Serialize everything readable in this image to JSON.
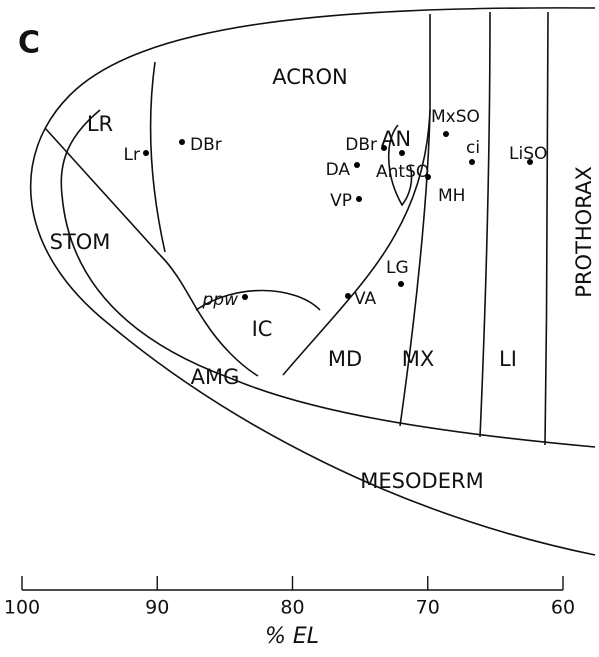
{
  "panel": "C",
  "regions": [
    "LR",
    "ACRON",
    "STOM",
    "AMG",
    "IC",
    "MD",
    "MX",
    "LI",
    "MESODERM",
    "PROTHORAX",
    "AN"
  ],
  "points": [
    "Lr",
    "DBr",
    "DBr",
    "DA",
    "AntSO",
    "VP",
    "MxSO",
    "ci",
    "LiSO",
    "MH",
    "LG",
    "VA",
    "ppw"
  ],
  "axis": {
    "ticks": [
      100,
      90,
      80,
      70,
      60
    ],
    "label": "% EL"
  }
}
